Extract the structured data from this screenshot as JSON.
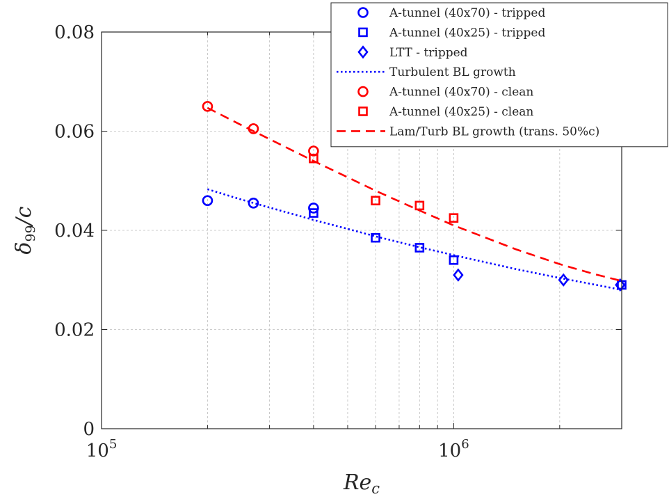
{
  "chart_data": {
    "type": "scatter",
    "xlabel": {
      "base": "Re",
      "sub": "c"
    },
    "ylabel": {
      "base": "δ",
      "sub": "99",
      "suffix": "/c"
    },
    "xscale": "log",
    "xlim": [
      100000,
      3000000
    ],
    "ylim": [
      0,
      0.08
    ],
    "yticks": [
      "0",
      "0.02",
      "0.04",
      "0.06",
      "0.08"
    ],
    "xticks": [
      {
        "base": "10",
        "exp": "5",
        "value": 100000
      },
      {
        "base": "10",
        "exp": "6",
        "value": 1000000
      }
    ],
    "grid": true,
    "legend_position": "top-right",
    "series": [
      {
        "name": "A-tunnel (40x70) - tripped",
        "kind": "marker",
        "marker": "circle",
        "color": "#0000ff",
        "x": [
          200000,
          270000,
          400000
        ],
        "y": [
          0.046,
          0.0455,
          0.0445
        ]
      },
      {
        "name": "A-tunnel (40x25) - tripped",
        "kind": "marker",
        "marker": "square",
        "color": "#0000ff",
        "x": [
          400000,
          600000,
          800000,
          1000000,
          3000000
        ],
        "y": [
          0.0435,
          0.0385,
          0.0365,
          0.034,
          0.029
        ]
      },
      {
        "name": "LTT - tripped",
        "kind": "marker",
        "marker": "diamond",
        "color": "#0000ff",
        "x": [
          1030000,
          2050000,
          2970000
        ],
        "y": [
          0.031,
          0.03,
          0.029
        ]
      },
      {
        "name": "Turbulent BL growth",
        "kind": "line",
        "style": "dotted",
        "color": "#0000ff",
        "x": [
          200000,
          250000,
          300000,
          400000,
          500000,
          600000,
          800000,
          1000000,
          1500000,
          2000000,
          2500000,
          3000000
        ],
        "y": [
          0.0483,
          0.0462,
          0.0446,
          0.0421,
          0.0403,
          0.0388,
          0.0366,
          0.035,
          0.0322,
          0.0304,
          0.0291,
          0.028
        ]
      },
      {
        "name": "A-tunnel (40x70) - clean",
        "kind": "marker",
        "marker": "circle",
        "color": "#ff0000",
        "x": [
          200000,
          270000,
          400000
        ],
        "y": [
          0.065,
          0.0605,
          0.056
        ]
      },
      {
        "name": "A-tunnel (40x25) - clean",
        "kind": "marker",
        "marker": "square",
        "color": "#ff0000",
        "x": [
          400000,
          600000,
          800000,
          1000000
        ],
        "y": [
          0.0545,
          0.046,
          0.045,
          0.0425
        ]
      },
      {
        "name": "Lam/Turb BL growth (trans. 50%c)",
        "kind": "line",
        "style": "dashed",
        "color": "#ff0000",
        "x": [
          200000,
          250000,
          300000,
          400000,
          500000,
          600000,
          800000,
          1000000,
          1500000,
          2000000,
          2500000,
          3000000
        ],
        "y": [
          0.0647,
          0.0612,
          0.0584,
          0.054,
          0.0507,
          0.048,
          0.044,
          0.041,
          0.0362,
          0.0332,
          0.0312,
          0.0298
        ]
      }
    ]
  }
}
